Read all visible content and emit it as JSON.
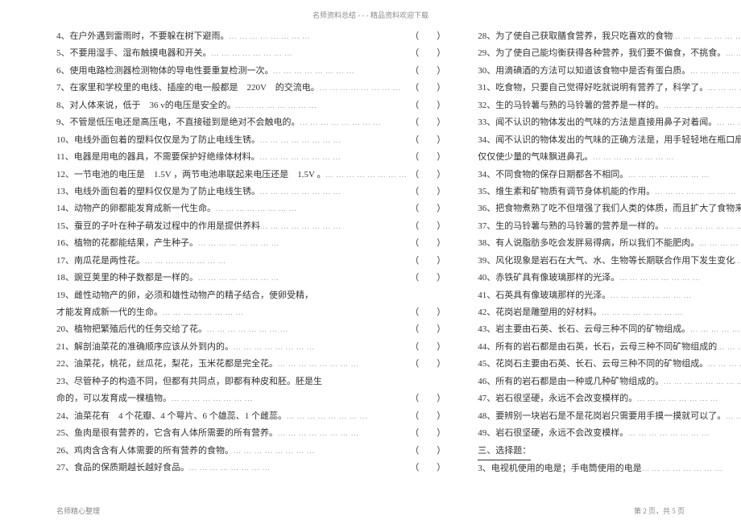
{
  "header": "名师资料总结 - - - 精品资料欢迎下载",
  "footer_left": "名师精心整理",
  "footer_right": "第 2 页，共 5 页",
  "left_col": [
    {
      "n": "4",
      "t": "、在户外遇到雷雨时，不要躲在树下避雨。"
    },
    {
      "n": "5",
      "t": "、不要用湿手、湿布触摸电器和开关。"
    },
    {
      "n": "6",
      "t": "、使用电路检测器检测物体的导电性要重复检测一次。"
    },
    {
      "n": "7",
      "t": "、在家里和学校里的电线、插座的电一般都是　220V　的交流电。"
    },
    {
      "n": "8",
      "t": "、对人体来说，低于　36 v的电压是安全的。"
    },
    {
      "n": "9",
      "t": "、不管是低压电还是高压电，不直接碰到是绝对不会触电的。"
    },
    {
      "n": "10",
      "t": "、电线外面包着的塑料仅仅是为了防止电线生锈。"
    },
    {
      "n": "11",
      "t": "、电器是用电的器具，不需要保护好绝缘体材料。"
    },
    {
      "n": "12",
      "t": "、一节电池的电压是　1.5V ，两节电池串联起来电压还是　1.5V 。"
    },
    {
      "n": "13",
      "t": "、电线外面包着的塑料仅仅是为了防止电线生锈。"
    },
    {
      "n": "14",
      "t": "、动物产的卵都能发育成新一代生命。"
    },
    {
      "n": "15",
      "t": "、蚕豆的子叶在种子萌发过程中的作用是提供养料"
    },
    {
      "n": "16",
      "t": "、植物的花都能结果，产生种子。"
    },
    {
      "n": "17",
      "t": "、南瓜花是两性花。"
    },
    {
      "n": "18",
      "t": "、豌豆荚里的种子数都是一样的。"
    },
    {
      "n": "19",
      "t": "、雌性动物产的卵，必须和雄性动物产的精子结合，使卵受精，",
      "cont": "才能发育成新一代的生命。"
    },
    {
      "n": "20",
      "t": "、植物把繁殖后代的任务交给了花。"
    },
    {
      "n": "21",
      "t": "、解剖油菜花的准确顺序应该从外到内的。"
    },
    {
      "n": "22",
      "t": "、油菜花，桃花，丝瓜花，梨花，玉米花都是完全花。"
    },
    {
      "n": "23",
      "t": "、尽管种子的构造不同，但都有共同点，即都有种皮和胚。胚是生",
      "cont": "命的，可以发育成一棵植物。"
    },
    {
      "n": "24",
      "t": "、油菜花有　4 个花瓣、4 个萼片、6 个雄蕊、1 个雌蕊。"
    },
    {
      "n": "25",
      "t": "、鱼肉是很有营养的，它含有人体所需要的所有营养。"
    },
    {
      "n": "26",
      "t": "、鸡肉含含有人体需要的所有营养的食物。"
    },
    {
      "n": "27",
      "t": "、食品的保质期越长越好食品。"
    }
  ],
  "right_col": [
    {
      "n": "28",
      "t": "、为了使自己获取膳食营养，我只吃喜欢的食物"
    },
    {
      "n": "29",
      "t": "、为了使自己能均衡获得各种营养，我们要不偏食，不挑食。"
    },
    {
      "n": "30",
      "t": "、用滴碘酒的方法可以知道该食物中是否有蛋白质。"
    },
    {
      "n": "31",
      "t": "、吃食物，只要自己觉得好吃就说明有营养了，科学了。"
    },
    {
      "n": "32",
      "t": "、生的马铃薯与熟的马铃薯的营养是一样的。"
    },
    {
      "n": "33",
      "t": "、闻不认识的物体发出的气味的方法是直接用鼻子对着闻。"
    },
    {
      "n": "34",
      "t": "、闻不认识的物体发出的气味的正确方法是，用手轻轻地在瓶口扇动，",
      "cont": "仅仅使少量的气味飘进鼻孔。"
    },
    {
      "n": "34",
      "t": "、不同食物的保存日期都各不相同。"
    },
    {
      "n": "35",
      "t": "、维生素和矿物质有调节身体机能的作用。"
    },
    {
      "n": "36",
      "t": "、把食物煮熟了吃不但增强了我们人类的体质，而且扩大了食物来源。"
    },
    {
      "n": "37",
      "t": "、生的马铃薯与熟的马铃薯的营养是一样的。"
    },
    {
      "n": "38",
      "t": "、有人说脂肪多吃会发胖易得病，所以我们不能肥肉。"
    },
    {
      "n": "39",
      "t": "、风化现象是岩石在大气、水、生物等长期联合作用下发生变化"
    },
    {
      "n": "40",
      "t": "、赤铁矿具有像玻璃那样的光泽。"
    },
    {
      "n": "41",
      "t": "、石英具有像玻璃那样的光泽。"
    },
    {
      "n": "42",
      "t": "、花岗岩是雕塑用的好材料。"
    },
    {
      "n": "43",
      "t": "、岩主要由石英、长石、云母三种不同的矿物组成。"
    },
    {
      "n": "44",
      "t": "、所有的岩石都是由石英，长石，云母三种不同矿物组成的"
    },
    {
      "n": "45",
      "t": "、花岗石主要由石英、长石、云母三种不同的矿物组成。"
    },
    {
      "n": "46",
      "t": "、所有的岩石都是由一种或几种矿物组成的。"
    },
    {
      "n": "47",
      "t": "、岩石很坚硬，永远不会改变模样的。"
    },
    {
      "n": "48",
      "t": "、要辨别一块岩石是不是花岗岩只需要用手摸一摸就可以了。"
    },
    {
      "n": "49",
      "t": "、岩石很坚硬，永远不会改变模样。"
    }
  ],
  "section3_label": "三、选择题：",
  "q3": {
    "n": "3",
    "t": "、电视机使用的电是；手电筒使用的电是"
  },
  "dots_fill": "... ... ... ... ... ... ... ..."
}
